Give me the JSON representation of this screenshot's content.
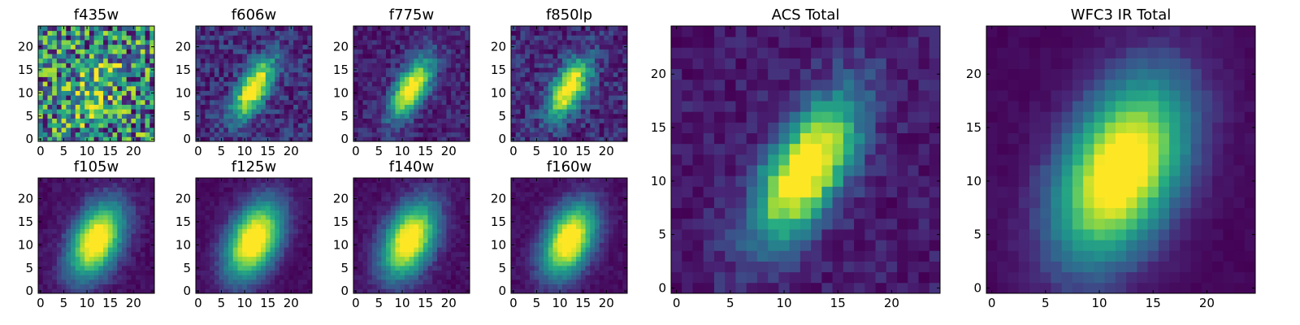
{
  "figure": {
    "colormap": "viridis",
    "grid": false,
    "panel_order": [
      "f435w",
      "f606w",
      "f775w",
      "f850lp",
      "f105w",
      "f125w",
      "f140w",
      "f160w",
      "ACS Total",
      "WFC3 IR Total"
    ]
  },
  "chart_data": [
    {
      "type": "heatmap",
      "title": "f435w",
      "grid_size": 25,
      "xlim": [
        -0.5,
        24.5
      ],
      "ylim": [
        -0.5,
        24.5
      ],
      "xticks": [
        "0",
        "5",
        "10",
        "15",
        "20"
      ],
      "yticks": [
        "0",
        "5",
        "10",
        "15",
        "20"
      ],
      "source_center": [
        12,
        11
      ],
      "source_width": [
        2.5,
        4.5
      ],
      "source_tilt_deg": 30,
      "peak": 0.35,
      "noise": 0.9,
      "background": 0.55
    },
    {
      "type": "heatmap",
      "title": "f606w",
      "grid_size": 25,
      "xlim": [
        -0.5,
        24.5
      ],
      "ylim": [
        -0.5,
        24.5
      ],
      "xticks": [
        "0",
        "5",
        "10",
        "15",
        "20"
      ],
      "yticks": [
        "0",
        "5",
        "10",
        "15",
        "20"
      ],
      "source_center": [
        12,
        11
      ],
      "source_width": [
        2.0,
        5.0
      ],
      "source_tilt_deg": 30,
      "peak": 1.0,
      "noise": 0.3,
      "background": 0.18
    },
    {
      "type": "heatmap",
      "title": "f775w",
      "grid_size": 25,
      "xlim": [
        -0.5,
        24.5
      ],
      "ylim": [
        -0.5,
        24.5
      ],
      "xticks": [
        "0",
        "5",
        "10",
        "15",
        "20"
      ],
      "yticks": [
        "0",
        "5",
        "10",
        "15",
        "20"
      ],
      "source_center": [
        12,
        11
      ],
      "source_width": [
        2.2,
        5.0
      ],
      "source_tilt_deg": 30,
      "peak": 1.0,
      "noise": 0.22,
      "background": 0.16
    },
    {
      "type": "heatmap",
      "title": "f850lp",
      "grid_size": 25,
      "xlim": [
        -0.5,
        24.5
      ],
      "ylim": [
        -0.5,
        24.5
      ],
      "xticks": [
        "0",
        "5",
        "10",
        "15",
        "20"
      ],
      "yticks": [
        "0",
        "5",
        "10",
        "15",
        "20"
      ],
      "source_center": [
        12,
        11
      ],
      "source_width": [
        2.3,
        4.8
      ],
      "source_tilt_deg": 30,
      "peak": 1.0,
      "noise": 0.28,
      "background": 0.14
    },
    {
      "type": "heatmap",
      "title": "f105w",
      "grid_size": 25,
      "xlim": [
        -0.5,
        24.5
      ],
      "ylim": [
        -0.5,
        24.5
      ],
      "xticks": [
        "0",
        "5",
        "10",
        "15",
        "20"
      ],
      "yticks": [
        "0",
        "5",
        "10",
        "15",
        "20"
      ],
      "source_center": [
        12,
        11
      ],
      "source_width": [
        3.5,
        6.0
      ],
      "source_tilt_deg": 25,
      "peak": 1.0,
      "noise": 0.1,
      "background": 0.1
    },
    {
      "type": "heatmap",
      "title": "f125w",
      "grid_size": 25,
      "xlim": [
        -0.5,
        24.5
      ],
      "ylim": [
        -0.5,
        24.5
      ],
      "xticks": [
        "0",
        "5",
        "10",
        "15",
        "20"
      ],
      "yticks": [
        "0",
        "5",
        "10",
        "15",
        "20"
      ],
      "source_center": [
        12,
        11
      ],
      "source_width": [
        3.6,
        6.2
      ],
      "source_tilt_deg": 25,
      "peak": 1.0,
      "noise": 0.08,
      "background": 0.1
    },
    {
      "type": "heatmap",
      "title": "f140w",
      "grid_size": 25,
      "xlim": [
        -0.5,
        24.5
      ],
      "ylim": [
        -0.5,
        24.5
      ],
      "xticks": [
        "0",
        "5",
        "10",
        "15",
        "20"
      ],
      "yticks": [
        "0",
        "5",
        "10",
        "15",
        "20"
      ],
      "source_center": [
        11.5,
        11
      ],
      "source_width": [
        3.5,
        6.0
      ],
      "source_tilt_deg": 25,
      "peak": 1.0,
      "noise": 0.1,
      "background": 0.1
    },
    {
      "type": "heatmap",
      "title": "f160w",
      "grid_size": 25,
      "xlim": [
        -0.5,
        24.5
      ],
      "ylim": [
        -0.5,
        24.5
      ],
      "xticks": [
        "0",
        "5",
        "10",
        "15",
        "20"
      ],
      "yticks": [
        "0",
        "5",
        "10",
        "15",
        "20"
      ],
      "source_center": [
        12,
        11
      ],
      "source_width": [
        3.4,
        5.8
      ],
      "source_tilt_deg": 25,
      "peak": 1.0,
      "noise": 0.09,
      "background": 0.08
    },
    {
      "type": "heatmap",
      "title": "ACS Total",
      "grid_size": 25,
      "xlim": [
        -0.5,
        24.5
      ],
      "ylim": [
        -0.5,
        24.5
      ],
      "xticks": [
        "0",
        "5",
        "10",
        "15",
        "20"
      ],
      "yticks": [
        "0",
        "5",
        "10",
        "15",
        "20"
      ],
      "source_center": [
        12,
        11
      ],
      "source_width": [
        2.3,
        5.2
      ],
      "source_tilt_deg": 30,
      "peak": 1.0,
      "noise": 0.16,
      "background": 0.15
    },
    {
      "type": "heatmap",
      "title": "WFC3 IR Total",
      "grid_size": 25,
      "xlim": [
        -0.5,
        24.5
      ],
      "ylim": [
        -0.5,
        24.5
      ],
      "xticks": [
        "0",
        "5",
        "10",
        "15",
        "20"
      ],
      "yticks": [
        "0",
        "5",
        "10",
        "15",
        "20"
      ],
      "source_center": [
        12,
        11
      ],
      "source_width": [
        3.6,
        6.2
      ],
      "source_tilt_deg": 25,
      "peak": 1.0,
      "noise": 0.05,
      "background": 0.08
    }
  ]
}
